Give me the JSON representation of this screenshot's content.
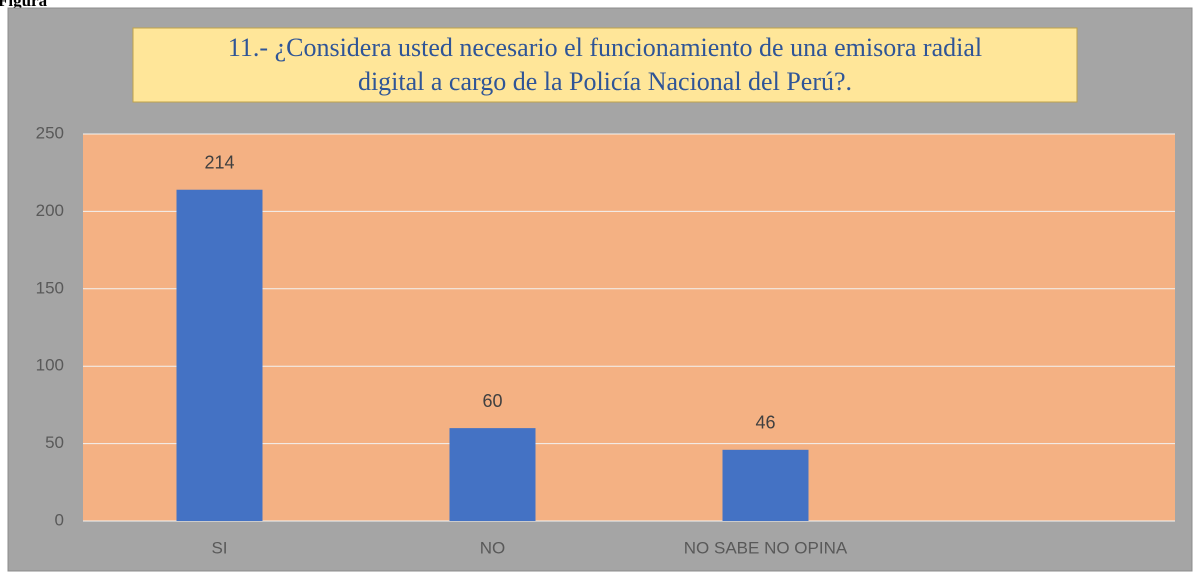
{
  "caption": "Figura",
  "chart_data": {
    "type": "bar",
    "title": [
      "11.- ¿Considera usted necesario el funcionamiento de una emisora radial",
      "digital a cargo de la Policía Nacional del Perú?."
    ],
    "categories": [
      "SI",
      "NO",
      "NO SABE NO OPINA",
      null
    ],
    "values": [
      214,
      60,
      46,
      null
    ],
    "color": "#4472c4",
    "ylim": [
      0,
      250
    ],
    "yticks": [
      0,
      50,
      100,
      150,
      200,
      250
    ],
    "grid": true
  }
}
